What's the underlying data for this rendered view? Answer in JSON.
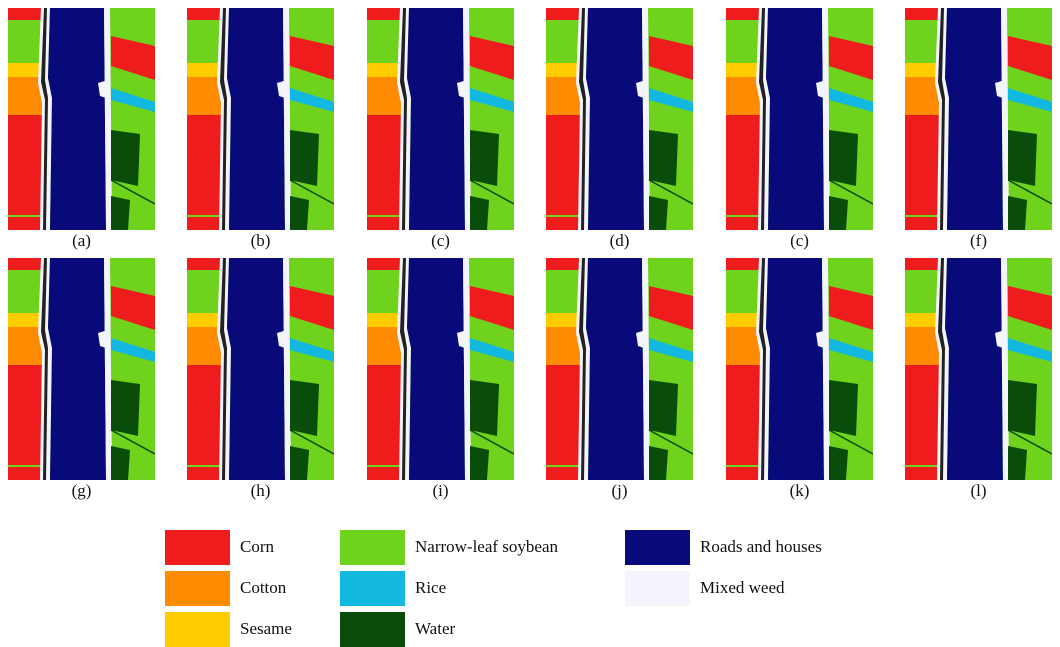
{
  "panels": [
    "(a)",
    "(b)",
    "(c)",
    "(d)",
    "(c)",
    "(f)",
    "(g)",
    "(h)",
    "(i)",
    "(j)",
    "(k)",
    "(l)"
  ],
  "legend": [
    {
      "name": "Corn",
      "color": "#ee1c1c"
    },
    {
      "name": "Cotton",
      "color": "#ff8c00"
    },
    {
      "name": "Sesame",
      "color": "#ffcc00"
    },
    {
      "name": "Narrow-leaf soybean",
      "color": "#6fd21c"
    },
    {
      "name": "Rice",
      "color": "#12b8e0"
    },
    {
      "name": "Water",
      "color": "#0a4d0a"
    },
    {
      "name": "Roads and houses",
      "color": "#070a78"
    },
    {
      "name": "Mixed weed",
      "color": "#f4f4fc"
    }
  ]
}
